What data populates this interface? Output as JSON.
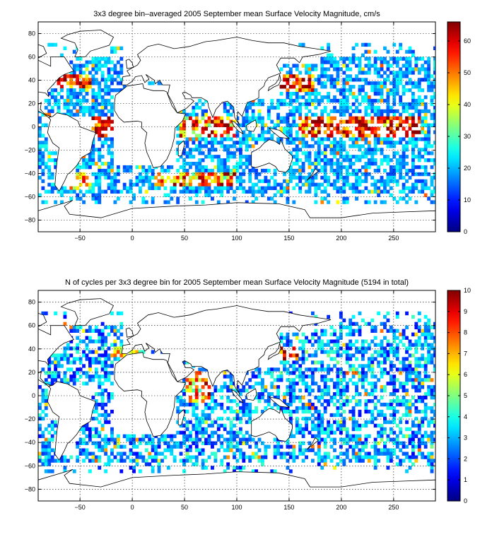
{
  "chart_data": [
    {
      "type": "heatmap",
      "title": "3x3 degree bin–averaged 2005 September mean Surface Velocity Magnitude, cm/s",
      "xlabel": "",
      "ylabel": "",
      "xlim": [
        -90,
        290
      ],
      "ylim": [
        -90,
        90
      ],
      "xticks": [
        -50,
        0,
        50,
        100,
        150,
        200,
        250
      ],
      "xtick_labels": [
        "−50",
        "0",
        "50",
        "100",
        "150",
        "200",
        "250"
      ],
      "yticks": [
        80,
        60,
        40,
        20,
        0,
        -20,
        -40,
        -60,
        -80
      ],
      "ytick_labels": [
        "80",
        "60",
        "40",
        "20",
        "0",
        "−20",
        "−40",
        "−60",
        "−80"
      ],
      "grid": true,
      "bin_size_deg": 3,
      "colorbar": {
        "colormap": "jet",
        "min": 0,
        "max": 66,
        "ticks": [
          0,
          10,
          20,
          30,
          40,
          50,
          60
        ],
        "tick_labels": [
          "0",
          "10",
          "20",
          "30",
          "40",
          "50",
          "60"
        ]
      }
    },
    {
      "type": "heatmap",
      "title": "N of cycles per 3x3 degree bin for 2005 September mean Surface Velocity Magnitude (5194 in total)",
      "xlabel": "",
      "ylabel": "",
      "xlim": [
        -90,
        290
      ],
      "ylim": [
        -90,
        90
      ],
      "xticks": [
        -50,
        0,
        50,
        100,
        150,
        200,
        250
      ],
      "xtick_labels": [
        "−50",
        "0",
        "50",
        "100",
        "150",
        "200",
        "250"
      ],
      "yticks": [
        80,
        60,
        40,
        20,
        0,
        -20,
        -40,
        -60,
        -80
      ],
      "ytick_labels": [
        "80",
        "60",
        "40",
        "20",
        "0",
        "−20",
        "−40",
        "−60",
        "−80"
      ],
      "grid": true,
      "bin_size_deg": 3,
      "colorbar": {
        "colormap": "jet",
        "min": 0,
        "max": 10,
        "ticks": [
          0,
          1,
          2,
          3,
          4,
          5,
          6,
          7,
          8,
          9,
          10
        ],
        "tick_labels": [
          "0",
          "1",
          "2",
          "3",
          "4",
          "5",
          "6",
          "7",
          "8",
          "9",
          "10"
        ]
      }
    }
  ]
}
